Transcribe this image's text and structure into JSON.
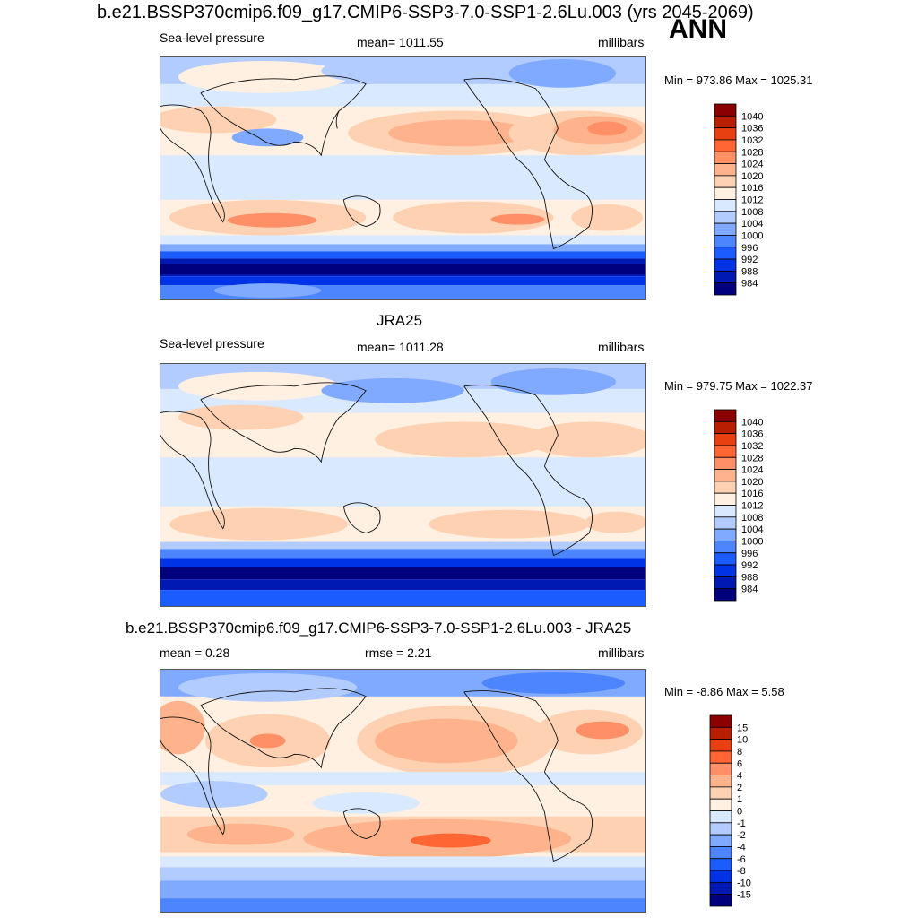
{
  "main_title": "b.e21.BSSP370cmip6.f09_g17.CMIP6-SSP3-7.0-SSP1-2.6Lu.003 (yrs 2045-2069)",
  "season": "ANN",
  "colors": {
    "abs_levels": [
      "#00007f",
      "#0019b3",
      "#0033e6",
      "#1a5cff",
      "#4d85ff",
      "#80aaff",
      "#b3ccff",
      "#d9e9ff",
      "#fff0e1",
      "#ffd1b3",
      "#ffb38c",
      "#ff8f66",
      "#ff6633",
      "#e84010",
      "#b81e00",
      "#8b0000"
    ],
    "diff_levels": [
      "#00007f",
      "#0019b3",
      "#0033e6",
      "#1a5cff",
      "#4d85ff",
      "#80aaff",
      "#b3ccff",
      "#d9e9ff",
      "#fff0e1",
      "#ffd1b3",
      "#ffb38c",
      "#ff8f66",
      "#ff6633",
      "#e84010",
      "#b81e00",
      "#8b0000"
    ]
  },
  "panels": [
    {
      "title": "",
      "left_label": "Sea-level pressure",
      "center_label": "mean= 1011.55",
      "right_label": "millibars",
      "minmax": "Min = 973.86 Max = 1025.31",
      "colorbar_labels": [
        "1040",
        "1036",
        "1032",
        "1028",
        "1024",
        "1020",
        "1016",
        "1012",
        "1008",
        "1004",
        "1000",
        "996",
        "992",
        "988",
        "984"
      ]
    },
    {
      "title": "JRA25",
      "left_label": "Sea-level pressure",
      "center_label": "mean= 1011.28",
      "right_label": "millibars",
      "minmax": "Min = 979.75 Max = 1022.37",
      "colorbar_labels": [
        "1040",
        "1036",
        "1032",
        "1028",
        "1024",
        "1020",
        "1016",
        "1012",
        "1008",
        "1004",
        "1000",
        "996",
        "992",
        "988",
        "984"
      ]
    },
    {
      "title": "b.e21.BSSP370cmip6.f09_g17.CMIP6-SSP3-7.0-SSP1-2.6Lu.003 - JRA25",
      "left_label": "mean =   0.28",
      "center_label": "rmse =   2.21",
      "right_label": "millibars",
      "minmax": "Min =  -8.86 Max =   5.58",
      "colorbar_labels": [
        "15",
        "10",
        "8",
        "6",
        "4",
        "2",
        "1",
        "0",
        "-1",
        "-2",
        "-4",
        "-6",
        "-8",
        "-10",
        "-15"
      ]
    }
  ],
  "chart_data": [
    {
      "type": "heatmap",
      "title": "b.e21.BSSP370cmip6.f09_g17.CMIP6-SSP3-7.0-SSP1-2.6Lu.003 (yrs 2045-2069)",
      "variable": "Sea-level pressure",
      "units": "millibars",
      "mean": 1011.55,
      "min": 973.86,
      "max": 1025.31,
      "contour_levels": [
        984,
        988,
        992,
        996,
        1000,
        1004,
        1008,
        1012,
        1016,
        1020,
        1024,
        1028,
        1032,
        1036,
        1040
      ]
    },
    {
      "type": "heatmap",
      "title": "JRA25",
      "variable": "Sea-level pressure",
      "units": "millibars",
      "mean": 1011.28,
      "min": 979.75,
      "max": 1022.37,
      "contour_levels": [
        984,
        988,
        992,
        996,
        1000,
        1004,
        1008,
        1012,
        1016,
        1020,
        1024,
        1028,
        1032,
        1036,
        1040
      ]
    },
    {
      "type": "heatmap",
      "title": "b.e21.BSSP370cmip6.f09_g17.CMIP6-SSP3-7.0-SSP1-2.6Lu.003 - JRA25",
      "units": "millibars",
      "mean": 0.28,
      "rmse": 2.21,
      "min": -8.86,
      "max": 5.58,
      "contour_levels": [
        -15,
        -10,
        -8,
        -6,
        -4,
        -2,
        -1,
        0,
        1,
        2,
        4,
        6,
        8,
        10,
        15
      ]
    }
  ]
}
